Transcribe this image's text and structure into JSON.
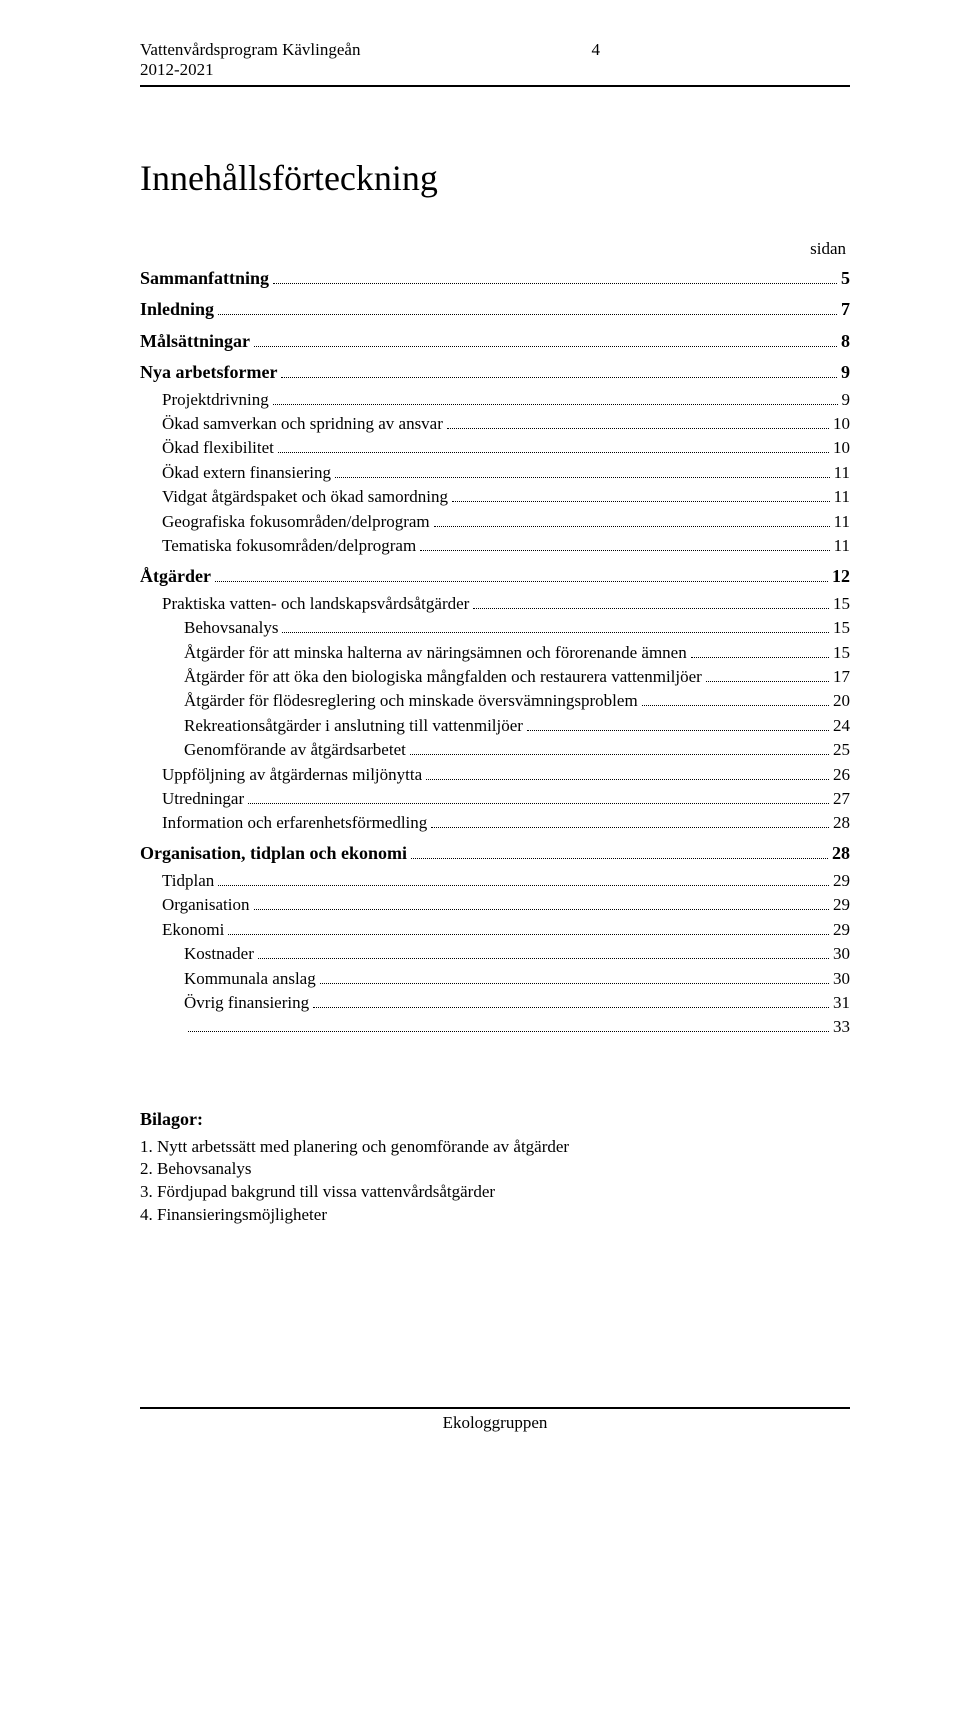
{
  "header": {
    "title_line1": "Vattenvårdsprogram Kävlingeån",
    "title_line2": "2012-2021",
    "page_number": "4"
  },
  "main_title": "Innehållsförteckning",
  "sidan_label": "sidan",
  "toc": [
    {
      "level": 0,
      "label": "Sammanfattning",
      "page": "5"
    },
    {
      "level": 0,
      "label": "Inledning",
      "page": "7"
    },
    {
      "level": 0,
      "label": "Målsättningar",
      "page": "8"
    },
    {
      "level": 0,
      "label": "Nya arbetsformer",
      "page": "9"
    },
    {
      "level": 1,
      "label": "Projektdrivning",
      "page": "9"
    },
    {
      "level": 1,
      "label": "Ökad samverkan och spridning av ansvar",
      "page": "10"
    },
    {
      "level": 1,
      "label": "Ökad flexibilitet",
      "page": "10"
    },
    {
      "level": 1,
      "label": "Ökad extern finansiering",
      "page": "11"
    },
    {
      "level": 1,
      "label": "Vidgat åtgärdspaket och ökad samordning",
      "page": "11"
    },
    {
      "level": 1,
      "label": "Geografiska fokusområden/delprogram",
      "page": "11"
    },
    {
      "level": 1,
      "label": "Tematiska fokusområden/delprogram",
      "page": "11"
    },
    {
      "level": 0,
      "label": "Åtgärder",
      "page": "12"
    },
    {
      "level": 1,
      "label": "Praktiska vatten- och landskapsvårdsåtgärder",
      "page": "15"
    },
    {
      "level": 2,
      "label": "Behovsanalys",
      "page": "15"
    },
    {
      "level": 2,
      "label": "Åtgärder för att minska halterna av näringsämnen och förorenande ämnen",
      "page": "15"
    },
    {
      "level": 2,
      "label": "Åtgärder för att öka den biologiska mångfalden och restaurera vattenmiljöer",
      "page": "17"
    },
    {
      "level": 2,
      "label": "Åtgärder för flödesreglering och minskade översvämningsproblem",
      "page": "20"
    },
    {
      "level": 2,
      "label": "Rekreationsåtgärder i anslutning till vattenmiljöer",
      "page": "24"
    },
    {
      "level": 2,
      "label": "Genomförande av åtgärdsarbetet",
      "page": "25"
    },
    {
      "level": 1,
      "label": "Uppföljning av åtgärdernas miljönytta",
      "page": "26"
    },
    {
      "level": 1,
      "label": "Utredningar",
      "page": "27"
    },
    {
      "level": 1,
      "label": "Information och erfarenhetsförmedling",
      "page": "28"
    },
    {
      "level": 0,
      "label": "Organisation, tidplan och ekonomi",
      "page": "28"
    },
    {
      "level": 1,
      "label": "Tidplan",
      "page": "29"
    },
    {
      "level": 1,
      "label": "Organisation",
      "page": "29"
    },
    {
      "level": 1,
      "label": "Ekonomi",
      "page": "29"
    },
    {
      "level": 2,
      "label": "Kostnader",
      "page": "30"
    },
    {
      "level": 2,
      "label": "Kommunala anslag",
      "page": "30"
    },
    {
      "level": 2,
      "label": "Övrig finansiering",
      "page": "31"
    },
    {
      "level": 2,
      "label": "",
      "page": "33",
      "hidden_label": true
    }
  ],
  "toc_last_visible_index": 29,
  "toc_override_last": {
    "label": "Övrig finansiering",
    "page": "33"
  },
  "bilagor": {
    "title": "Bilagor:",
    "items": [
      "1. Nytt arbetssätt med planering och genomförande av åtgärder",
      "2. Behovsanalys",
      "3. Fördjupad bakgrund till vissa vattenvårdsåtgärder",
      "4. Finansieringsmöjligheter"
    ]
  },
  "footer": "Ekologgruppen",
  "colors": {
    "text": "#000000",
    "background": "#ffffff",
    "rule": "#000000"
  }
}
